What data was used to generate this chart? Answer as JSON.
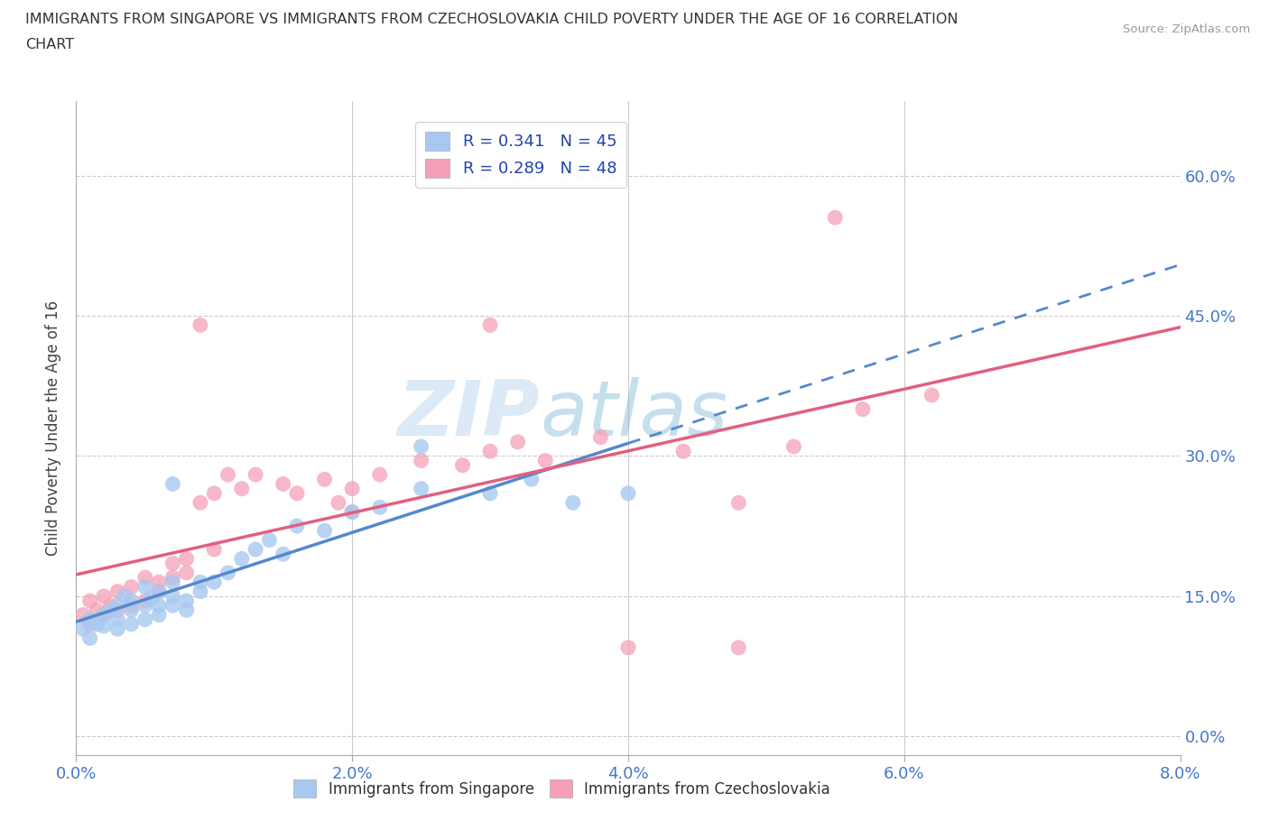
{
  "title_line1": "IMMIGRANTS FROM SINGAPORE VS IMMIGRANTS FROM CZECHOSLOVAKIA CHILD POVERTY UNDER THE AGE OF 16 CORRELATION",
  "title_line2": "CHART",
  "source": "Source: ZipAtlas.com",
  "ylabel": "Child Poverty Under the Age of 16",
  "xlim": [
    0.0,
    0.08
  ],
  "ylim": [
    -0.02,
    0.68
  ],
  "yticks": [
    0.0,
    0.15,
    0.3,
    0.45,
    0.6
  ],
  "ytick_labels": [
    "0.0%",
    "15.0%",
    "30.0%",
    "45.0%",
    "60.0%"
  ],
  "xticks": [
    0.0,
    0.02,
    0.04,
    0.06,
    0.08
  ],
  "xtick_labels": [
    "0.0%",
    "2.0%",
    "4.0%",
    "6.0%",
    "8.0%"
  ],
  "singapore_R": 0.341,
  "singapore_N": 45,
  "czechoslovakia_R": 0.289,
  "czechoslovakia_N": 48,
  "singapore_color": "#a8c8f0",
  "czechoslovakia_color": "#f5a0b8",
  "singapore_line_color": "#5588cc",
  "czechoslovakia_line_color": "#e06080",
  "legend_text_color": "#2244aa",
  "tick_label_color": "#4477cc",
  "watermark_color": "#c8dff0",
  "sg_line_solid_end": 0.04,
  "sg_line_dashed_end": 0.08,
  "cz_line_end": 0.08,
  "sg_x": [
    0.0005,
    0.001,
    0.001,
    0.0015,
    0.002,
    0.002,
    0.0025,
    0.003,
    0.003,
    0.003,
    0.0035,
    0.004,
    0.004,
    0.004,
    0.005,
    0.005,
    0.005,
    0.0055,
    0.006,
    0.006,
    0.006,
    0.007,
    0.007,
    0.007,
    0.008,
    0.008,
    0.009,
    0.009,
    0.01,
    0.011,
    0.012,
    0.013,
    0.014,
    0.016,
    0.018,
    0.02,
    0.022,
    0.025,
    0.03,
    0.033,
    0.036,
    0.04,
    0.025,
    0.007,
    0.015
  ],
  "sg_y": [
    0.115,
    0.105,
    0.125,
    0.12,
    0.13,
    0.118,
    0.135,
    0.125,
    0.115,
    0.14,
    0.15,
    0.135,
    0.12,
    0.145,
    0.14,
    0.125,
    0.16,
    0.148,
    0.14,
    0.13,
    0.155,
    0.15,
    0.14,
    0.165,
    0.145,
    0.135,
    0.155,
    0.165,
    0.165,
    0.175,
    0.19,
    0.2,
    0.21,
    0.225,
    0.22,
    0.24,
    0.245,
    0.265,
    0.26,
    0.275,
    0.25,
    0.26,
    0.31,
    0.27,
    0.195
  ],
  "cz_x": [
    0.0005,
    0.001,
    0.001,
    0.0015,
    0.002,
    0.002,
    0.0025,
    0.003,
    0.003,
    0.004,
    0.004,
    0.005,
    0.005,
    0.006,
    0.006,
    0.007,
    0.007,
    0.008,
    0.008,
    0.009,
    0.01,
    0.011,
    0.012,
    0.013,
    0.015,
    0.016,
    0.018,
    0.019,
    0.02,
    0.022,
    0.025,
    0.028,
    0.03,
    0.032,
    0.034,
    0.038,
    0.04,
    0.044,
    0.048,
    0.052,
    0.057,
    0.062,
    0.03,
    0.048,
    0.055,
    0.01,
    0.02,
    0.009
  ],
  "cz_y": [
    0.13,
    0.12,
    0.145,
    0.135,
    0.13,
    0.15,
    0.14,
    0.135,
    0.155,
    0.14,
    0.16,
    0.145,
    0.17,
    0.155,
    0.165,
    0.17,
    0.185,
    0.175,
    0.19,
    0.25,
    0.26,
    0.28,
    0.265,
    0.28,
    0.27,
    0.26,
    0.275,
    0.25,
    0.265,
    0.28,
    0.295,
    0.29,
    0.305,
    0.315,
    0.295,
    0.32,
    0.095,
    0.305,
    0.095,
    0.31,
    0.35,
    0.365,
    0.44,
    0.25,
    0.555,
    0.2,
    0.24,
    0.44
  ]
}
